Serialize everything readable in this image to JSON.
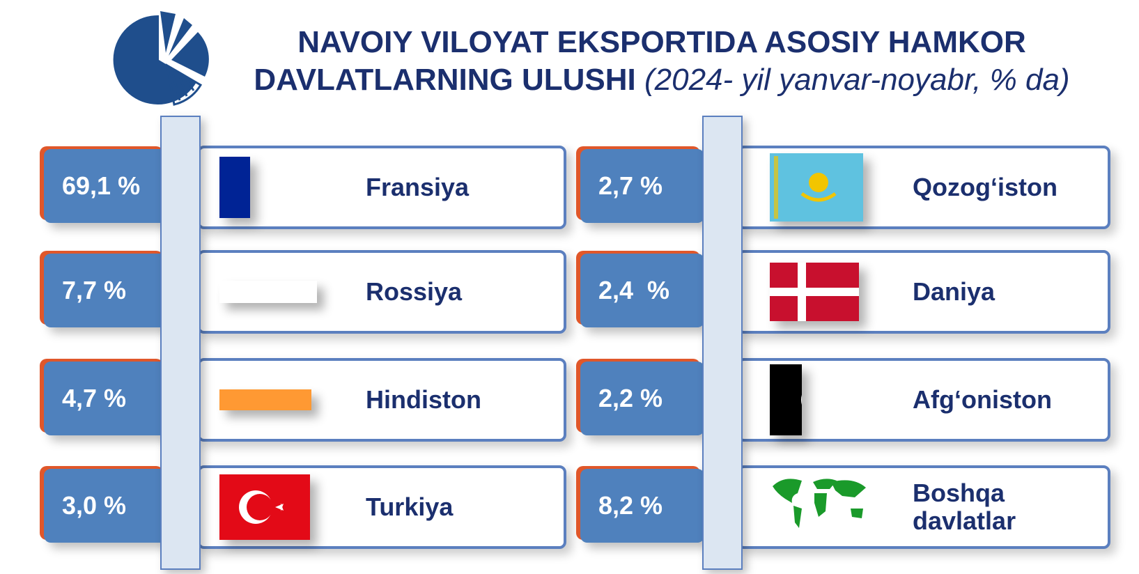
{
  "header": {
    "title_line1": "NAVOIY VILOYAT EKSPORTIDA ASOSIY HAMKOR",
    "title_line2": "DAVLATLARNING ULUSHI",
    "subtitle": "(2024- yil yanvar-noyabr, % da)"
  },
  "left": [
    {
      "value": "69,1 %",
      "country": "Fransiya"
    },
    {
      "value": "7,7 %",
      "country": "Rossiya"
    },
    {
      "value": "4,7 %",
      "country": "Hindiston"
    },
    {
      "value": "3,0 %",
      "country": "Turkiya"
    }
  ],
  "right": [
    {
      "value": "2,7 %",
      "country": "Qozog‘iston"
    },
    {
      "value": "2,4  %",
      "country": "Daniya"
    },
    {
      "value": "2,2 %",
      "country": "Afg‘oniston"
    },
    {
      "value": "8,2 %",
      "country": "Boshqa davlatlar"
    }
  ]
}
